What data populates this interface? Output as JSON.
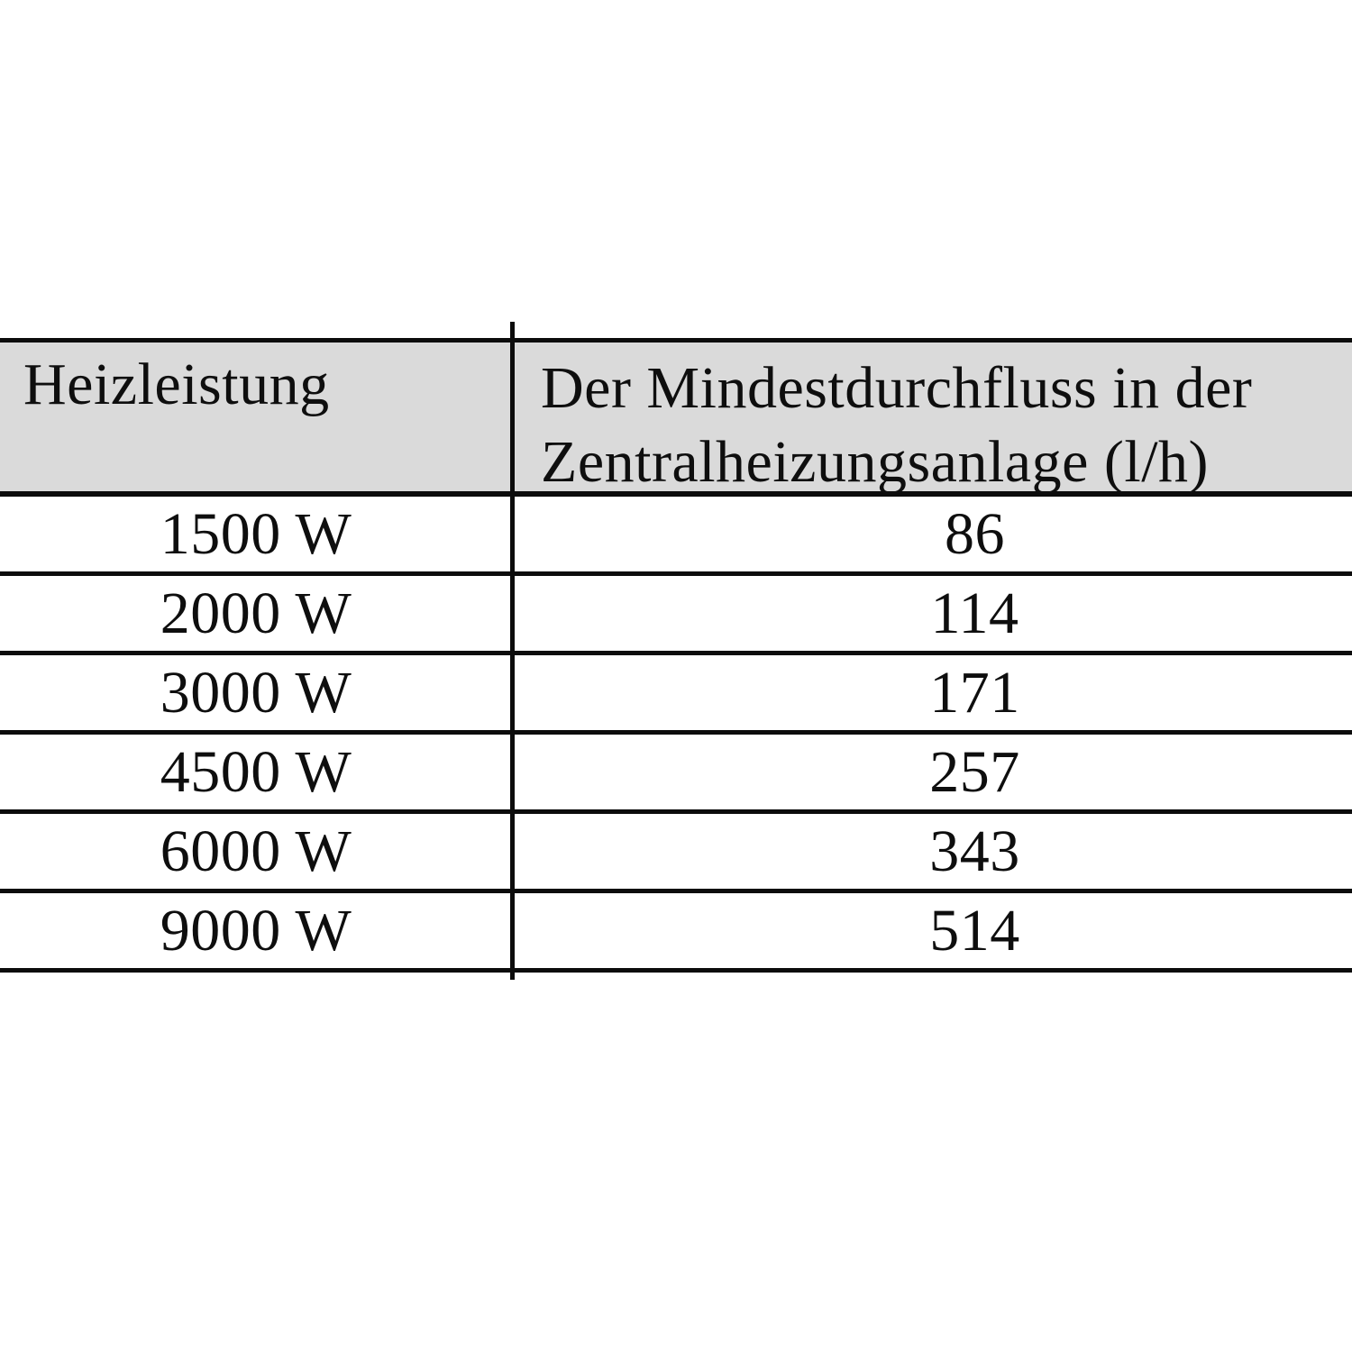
{
  "table": {
    "columns": [
      {
        "label": "Heizleistung"
      },
      {
        "label": "Der Mindestdurchfluss in der Zentralheizungsanlage (l/h)",
        "label_lines": [
          "Der Mindestdurchfluss in der",
          "Zentralheizungsanlage (l/h)"
        ]
      }
    ],
    "rows": [
      {
        "power": "1500 W",
        "min_flow": "86"
      },
      {
        "power": "2000 W",
        "min_flow": "114"
      },
      {
        "power": "3000 W",
        "min_flow": "171"
      },
      {
        "power": "4500 W",
        "min_flow": "257"
      },
      {
        "power": "6000 W",
        "min_flow": "343"
      },
      {
        "power": "9000 W",
        "min_flow": "514"
      }
    ]
  },
  "colors": {
    "page_background": "#ffffff",
    "header_background": "#dadada",
    "grid_line": "#0c0c0c",
    "text": "#0e0e0e"
  }
}
